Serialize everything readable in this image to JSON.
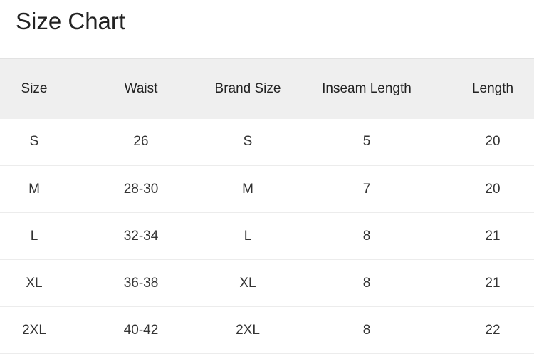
{
  "title": "Size Chart",
  "table": {
    "headers": [
      "Size",
      "Waist",
      "Brand Size",
      "Inseam Length",
      "Length"
    ],
    "rows": [
      [
        "S",
        "26",
        "S",
        "5",
        "20"
      ],
      [
        "M",
        "28-30",
        "M",
        "7",
        "20"
      ],
      [
        "L",
        "32-34",
        "L",
        "8",
        "21"
      ],
      [
        "XL",
        "36-38",
        "XL",
        "8",
        "21"
      ],
      [
        "2XL",
        "40-42",
        "2XL",
        "8",
        "22"
      ]
    ]
  }
}
